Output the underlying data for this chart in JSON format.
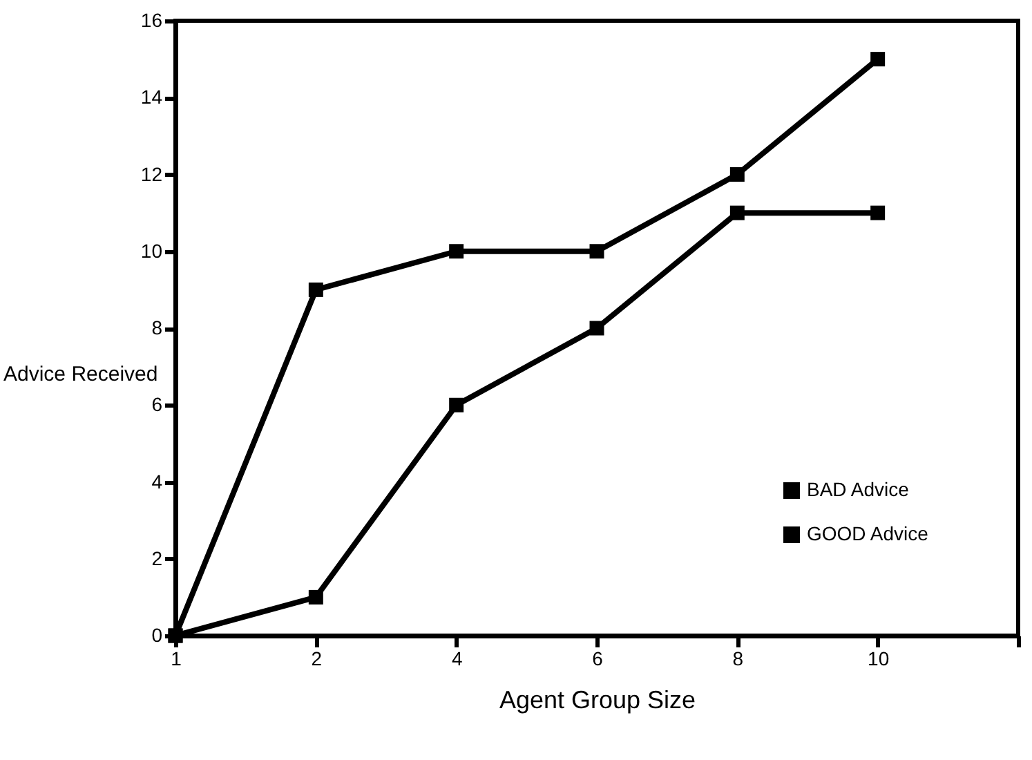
{
  "chart_data": {
    "type": "line",
    "xlabel": "Agent Group Size",
    "ylabel": "Advice Received",
    "categories": [
      "1",
      "2",
      "4",
      "6",
      "8",
      "10",
      null
    ],
    "series": [
      {
        "name": "BAD Advice",
        "color": "#000000",
        "values": [
          0,
          9,
          10,
          10,
          12,
          15,
          null
        ]
      },
      {
        "name": "GOOD Advice",
        "color": "#000000",
        "values": [
          0,
          1,
          6,
          8,
          11,
          11,
          null
        ]
      }
    ],
    "ylim": [
      0,
      16
    ],
    "yticks": [
      0,
      2,
      4,
      6,
      8,
      10,
      12,
      14,
      16
    ],
    "grid": false,
    "legend": "bottom right",
    "marker": "square",
    "line_style": "solid"
  }
}
